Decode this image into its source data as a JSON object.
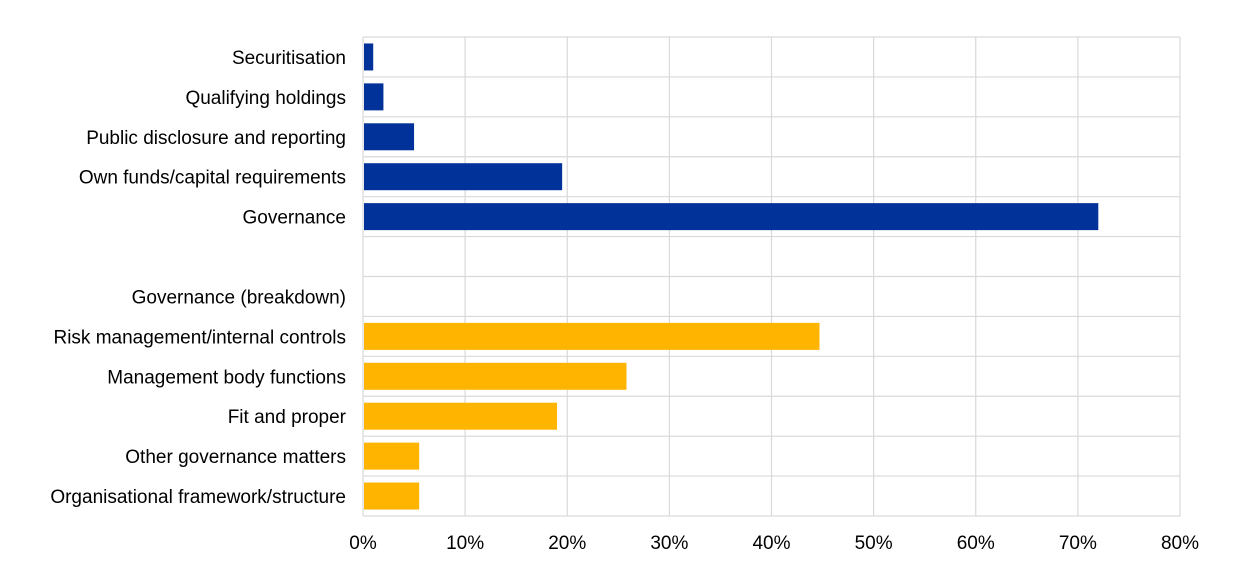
{
  "chart_data": {
    "type": "bar",
    "orientation": "horizontal",
    "title": "",
    "xlabel": "",
    "ylabel": "",
    "xlim": [
      0,
      80
    ],
    "x_ticks": [
      "0%",
      "10%",
      "20%",
      "30%",
      "40%",
      "50%",
      "60%",
      "70%",
      "80%"
    ],
    "grid": true,
    "legend": "none",
    "categories": [
      "Securitisation",
      "Qualifying holdings",
      "Public disclosure and reporting",
      "Own funds/capital requirements",
      "Governance",
      "",
      "Governance (breakdown)",
      "Risk management/internal controls",
      "Management body functions",
      "Fit and proper",
      "Other governance matters",
      "Organisational framework/structure"
    ],
    "values": [
      1,
      2,
      5,
      19.5,
      72,
      null,
      null,
      44.7,
      25.8,
      19,
      5.5,
      5.5
    ],
    "colors": [
      "#003299",
      "#003299",
      "#003299",
      "#003299",
      "#003299",
      "#003299",
      "#FFB400",
      "#FFB400",
      "#FFB400",
      "#FFB400",
      "#FFB400",
      "#FFB400"
    ]
  }
}
